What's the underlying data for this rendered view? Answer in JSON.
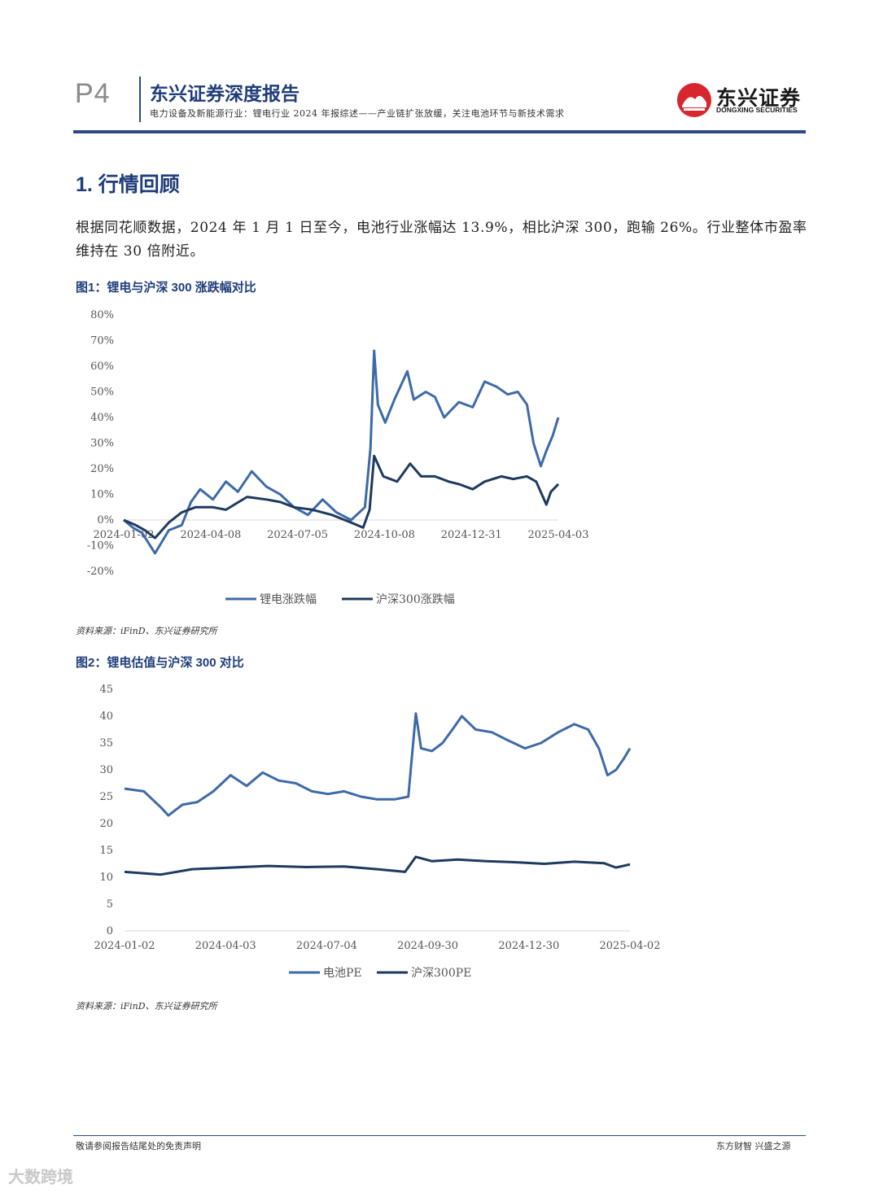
{
  "header": {
    "page_no": "P4",
    "report_title": "东兴证券深度报告",
    "report_subtitle": "电力设备及新能源行业：锂电行业 2024 年报综述——产业链扩张放缓，关注电池环节与新技术需求",
    "logo_cn": "东兴证券",
    "logo_en": "DONGXING SECURITIES",
    "accent_color": "#2b4a86"
  },
  "section": {
    "title": "1. 行情回顾",
    "paragraph": "根据同花顺数据，2024 年 1 月 1 日至今，电池行业涨幅达 13.9%，相比沪深 300，跑输 26%。行业整体市盈率维持在 30 倍附近。"
  },
  "figure1": {
    "title": "图1：锂电与沪深 300 涨跌幅对比",
    "source": "资料来源：iFinD、东兴证券研究所"
  },
  "figure2": {
    "title": "图2：锂电估值与沪深 300 对比",
    "source": "资料来源：iFinD、东兴证券研究所"
  },
  "footer": {
    "left": "敬请参阅报告结尾处的免责声明",
    "right": "东方财智 兴盛之源",
    "watermark": "大数跨境"
  },
  "chart_data": [
    {
      "type": "line",
      "y_ticks": [
        "80%",
        "70%",
        "60%",
        "50%",
        "40%",
        "30%",
        "20%",
        "10%",
        "0%",
        "-10%",
        "-20%"
      ],
      "ylim": [
        -20,
        80
      ],
      "x_ticks": [
        "2024-01-02",
        "2024-04-08",
        "2024-07-05",
        "2024-10-08",
        "2024-12-31",
        "2025-04-03"
      ],
      "x_start": "2024-01-02",
      "x_end": "2025-04-18",
      "grid": false,
      "legend": "bottom",
      "series": [
        {
          "name": "锂电涨跌幅",
          "color": "#3d6aa8",
          "points": [
            [
              "2024-01-02",
              0
            ],
            [
              "2024-01-12",
              -3
            ],
            [
              "2024-01-22",
              -5
            ],
            [
              "2024-02-05",
              -13
            ],
            [
              "2024-02-20",
              -4
            ],
            [
              "2024-03-05",
              -2
            ],
            [
              "2024-03-15",
              7
            ],
            [
              "2024-03-25",
              12
            ],
            [
              "2024-04-08",
              8
            ],
            [
              "2024-04-22",
              15
            ],
            [
              "2024-05-05",
              11
            ],
            [
              "2024-05-20",
              19
            ],
            [
              "2024-06-05",
              13
            ],
            [
              "2024-06-20",
              10
            ],
            [
              "2024-07-05",
              5
            ],
            [
              "2024-07-20",
              2
            ],
            [
              "2024-08-05",
              8
            ],
            [
              "2024-08-20",
              3
            ],
            [
              "2024-09-05",
              0
            ],
            [
              "2024-09-20",
              5
            ],
            [
              "2024-09-26",
              28
            ],
            [
              "2024-09-30",
              66
            ],
            [
              "2024-10-04",
              45
            ],
            [
              "2024-10-12",
              38
            ],
            [
              "2024-10-22",
              47
            ],
            [
              "2024-11-05",
              58
            ],
            [
              "2024-11-12",
              47
            ],
            [
              "2024-11-25",
              50
            ],
            [
              "2024-12-05",
              48
            ],
            [
              "2024-12-15",
              40
            ],
            [
              "2024-12-31",
              46
            ],
            [
              "2025-01-15",
              44
            ],
            [
              "2025-01-28",
              54
            ],
            [
              "2025-02-10",
              52
            ],
            [
              "2025-02-22",
              49
            ],
            [
              "2025-03-05",
              50
            ],
            [
              "2025-03-15",
              45
            ],
            [
              "2025-03-22",
              30
            ],
            [
              "2025-03-30",
              21
            ],
            [
              "2025-04-05",
              27
            ],
            [
              "2025-04-12",
              33
            ],
            [
              "2025-04-18",
              40
            ]
          ]
        },
        {
          "name": "沪深300涨跌幅",
          "color": "#1f3a5f",
          "points": [
            [
              "2024-01-02",
              0
            ],
            [
              "2024-01-15",
              -2
            ],
            [
              "2024-01-25",
              -4
            ],
            [
              "2024-02-05",
              -7
            ],
            [
              "2024-02-20",
              -1
            ],
            [
              "2024-03-05",
              3
            ],
            [
              "2024-03-20",
              5
            ],
            [
              "2024-04-08",
              5
            ],
            [
              "2024-04-22",
              4
            ],
            [
              "2024-05-15",
              9
            ],
            [
              "2024-06-05",
              8
            ],
            [
              "2024-06-20",
              7
            ],
            [
              "2024-07-05",
              5
            ],
            [
              "2024-07-25",
              4
            ],
            [
              "2024-08-15",
              2
            ],
            [
              "2024-09-05",
              -1
            ],
            [
              "2024-09-18",
              -3
            ],
            [
              "2024-09-25",
              4
            ],
            [
              "2024-09-30",
              25
            ],
            [
              "2024-10-10",
              17
            ],
            [
              "2024-10-25",
              15
            ],
            [
              "2024-11-08",
              22
            ],
            [
              "2024-11-20",
              17
            ],
            [
              "2024-12-05",
              17
            ],
            [
              "2024-12-20",
              15
            ],
            [
              "2024-12-31",
              14
            ],
            [
              "2025-01-15",
              12
            ],
            [
              "2025-01-28",
              15
            ],
            [
              "2025-02-15",
              17
            ],
            [
              "2025-02-28",
              16
            ],
            [
              "2025-03-15",
              17
            ],
            [
              "2025-03-25",
              15
            ],
            [
              "2025-04-05",
              6
            ],
            [
              "2025-04-10",
              11
            ],
            [
              "2025-04-18",
              14
            ]
          ]
        }
      ]
    },
    {
      "type": "line",
      "y_ticks": [
        "45",
        "40",
        "35",
        "30",
        "25",
        "20",
        "15",
        "10",
        "5",
        "0"
      ],
      "ylim": [
        0,
        45
      ],
      "x_ticks": [
        "2024-01-02",
        "2024-04-03",
        "2024-07-04",
        "2024-09-30",
        "2024-12-30",
        "2025-04-02"
      ],
      "x_start": "2024-01-02",
      "x_end": "2025-04-18",
      "grid": false,
      "legend": "bottom",
      "series": [
        {
          "name": "电池PE",
          "color": "#3d6aa8",
          "points": [
            [
              "2024-01-02",
              26.5
            ],
            [
              "2024-01-20",
              26
            ],
            [
              "2024-02-05",
              23
            ],
            [
              "2024-02-12",
              21.5
            ],
            [
              "2024-02-25",
              23.5
            ],
            [
              "2024-03-10",
              24
            ],
            [
              "2024-03-25",
              26
            ],
            [
              "2024-04-10",
              29
            ],
            [
              "2024-04-25",
              27
            ],
            [
              "2024-05-10",
              29.5
            ],
            [
              "2024-05-25",
              28
            ],
            [
              "2024-06-10",
              27.5
            ],
            [
              "2024-06-25",
              26
            ],
            [
              "2024-07-10",
              25.5
            ],
            [
              "2024-07-25",
              26
            ],
            [
              "2024-08-10",
              25
            ],
            [
              "2024-08-25",
              24.5
            ],
            [
              "2024-09-10",
              24.5
            ],
            [
              "2024-09-23",
              25
            ],
            [
              "2024-09-30",
              40.5
            ],
            [
              "2024-10-05",
              34
            ],
            [
              "2024-10-15",
              33.5
            ],
            [
              "2024-10-25",
              35
            ],
            [
              "2024-11-05",
              38
            ],
            [
              "2024-11-12",
              40
            ],
            [
              "2024-11-25",
              37.5
            ],
            [
              "2024-12-10",
              37
            ],
            [
              "2024-12-25",
              35.5
            ],
            [
              "2025-01-10",
              34
            ],
            [
              "2025-01-25",
              35
            ],
            [
              "2025-02-10",
              37
            ],
            [
              "2025-02-25",
              38.5
            ],
            [
              "2025-03-10",
              37.5
            ],
            [
              "2025-03-20",
              34
            ],
            [
              "2025-03-28",
              29
            ],
            [
              "2025-04-05",
              30
            ],
            [
              "2025-04-12",
              32
            ],
            [
              "2025-04-18",
              34
            ]
          ]
        },
        {
          "name": "沪深300PE",
          "color": "#1f3a5f",
          "points": [
            [
              "2024-01-02",
              11
            ],
            [
              "2024-02-05",
              10.5
            ],
            [
              "2024-03-05",
              11.5
            ],
            [
              "2024-04-10",
              11.8
            ],
            [
              "2024-05-15",
              12.1
            ],
            [
              "2024-06-20",
              11.9
            ],
            [
              "2024-07-25",
              12
            ],
            [
              "2024-08-25",
              11.5
            ],
            [
              "2024-09-20",
              11
            ],
            [
              "2024-09-30",
              13.8
            ],
            [
              "2024-10-15",
              13
            ],
            [
              "2024-11-08",
              13.3
            ],
            [
              "2024-12-05",
              13
            ],
            [
              "2024-12-31",
              12.8
            ],
            [
              "2025-01-28",
              12.5
            ],
            [
              "2025-02-25",
              12.9
            ],
            [
              "2025-03-25",
              12.6
            ],
            [
              "2025-04-05",
              11.8
            ],
            [
              "2025-04-18",
              12.4
            ]
          ]
        }
      ]
    }
  ]
}
